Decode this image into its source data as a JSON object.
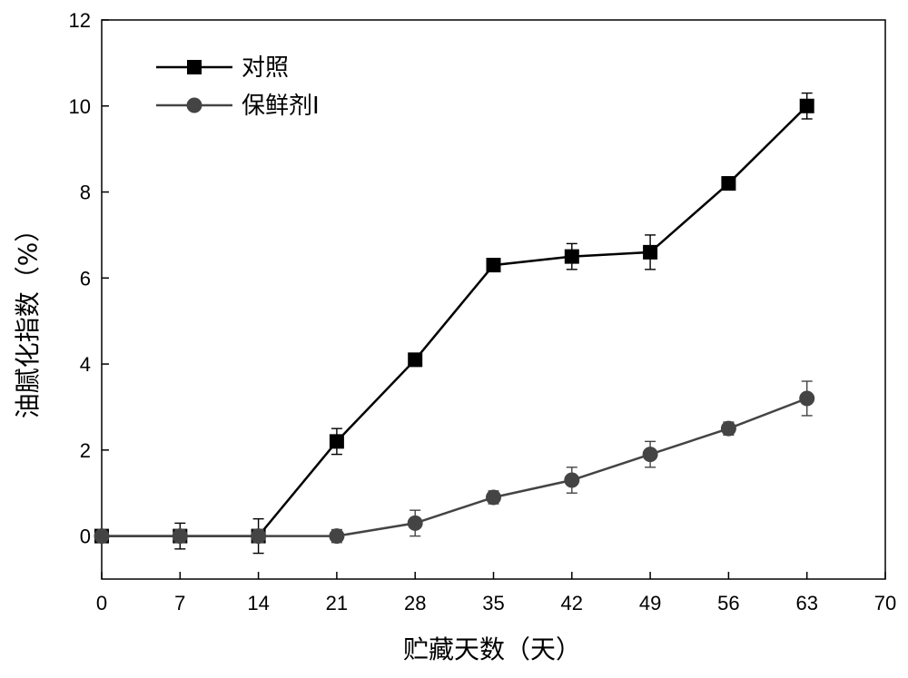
{
  "chart_data": {
    "type": "line",
    "title": "",
    "xlabel": "贮藏天数（天）",
    "ylabel": "油腻化指数（%）",
    "xlim": [
      0,
      70
    ],
    "ylim": [
      -1,
      12
    ],
    "xticks": [
      0,
      7,
      14,
      21,
      28,
      35,
      42,
      49,
      56,
      63,
      70
    ],
    "yticks": [
      0,
      2,
      4,
      6,
      8,
      10,
      12
    ],
    "grid": false,
    "legend_position": "top-left",
    "x": [
      0,
      7,
      14,
      21,
      28,
      35,
      42,
      49,
      56,
      63
    ],
    "series": [
      {
        "name": "对照",
        "marker": "square",
        "color": "#000000",
        "values": [
          0,
          0,
          0,
          2.2,
          4.1,
          6.3,
          6.5,
          6.6,
          8.2,
          10.0
        ],
        "errors": [
          0.1,
          0.3,
          0.4,
          0.3,
          0.15,
          0.15,
          0.3,
          0.4,
          0.15,
          0.3
        ]
      },
      {
        "name": "保鲜剂I",
        "marker": "circle",
        "color": "#444444",
        "values": [
          0,
          0,
          0,
          0,
          0.3,
          0.9,
          1.3,
          1.9,
          2.5,
          3.2
        ],
        "errors": [
          0.1,
          0.15,
          0.15,
          0.15,
          0.3,
          0.15,
          0.3,
          0.3,
          0.15,
          0.4
        ]
      }
    ]
  }
}
